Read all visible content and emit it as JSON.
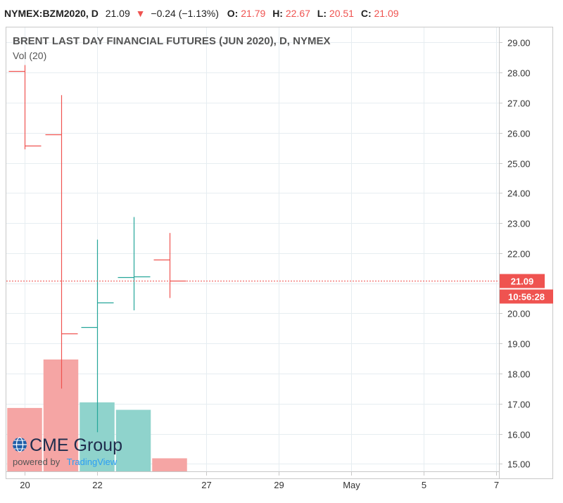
{
  "header": {
    "symbol": "NYMEX:BZM2020, D",
    "last": "21.09",
    "change_arrow": "▼",
    "change": "−0.24 (−1.13%)",
    "open_label": "O:",
    "open": "21.79",
    "high_label": "H:",
    "high": "22.67",
    "low_label": "L:",
    "low": "20.51",
    "close_label": "C:",
    "close": "21.09"
  },
  "colors": {
    "up": "#26a69a",
    "down": "#ef5350",
    "vol_up": "#8fd3cc",
    "vol_down": "#f5a5a4",
    "grid": "#e6edf1",
    "border": "#c8c8c8"
  },
  "price_tag": {
    "value": "21.09",
    "countdown": "10:56:28"
  },
  "logo": {
    "brand": "CME Group",
    "powered_by": "powered by",
    "tradingview": "TradingView"
  },
  "chart_data": {
    "type": "ohlc",
    "title": "BRENT LAST DAY FINANCIAL FUTURES (JUN 2020), D, NYMEX",
    "indicator": "Vol (20)",
    "yaxis": {
      "range": [
        14.75,
        29.5
      ],
      "ticks": [
        "15.00",
        "16.00",
        "17.00",
        "18.00",
        "19.00",
        "20.00",
        "21.00",
        "22.00",
        "23.00",
        "24.00",
        "25.00",
        "26.00",
        "27.00",
        "28.00",
        "29.00"
      ]
    },
    "xaxis": {
      "ticks": [
        {
          "label": "20",
          "slot": 0
        },
        {
          "label": "22",
          "slot": 2
        },
        {
          "label": "27",
          "slot": 5
        },
        {
          "label": "29",
          "slot": 7
        },
        {
          "label": "May",
          "slot": 9
        },
        {
          "label": "5",
          "slot": 11
        },
        {
          "label": "7",
          "slot": 13
        }
      ]
    },
    "bars": [
      {
        "date": "Apr 20",
        "slot": 0,
        "open": 28.05,
        "high": 28.25,
        "low": 25.45,
        "close": 25.57
      },
      {
        "date": "Apr 21",
        "slot": 1,
        "open": 25.95,
        "high": 27.25,
        "low": 17.5,
        "close": 19.33
      },
      {
        "date": "Apr 22",
        "slot": 2,
        "open": 19.55,
        "high": 22.45,
        "low": 16.05,
        "close": 20.37
      },
      {
        "date": "Apr 23",
        "slot": 3,
        "open": 21.2,
        "high": 23.2,
        "low": 20.1,
        "close": 21.22
      },
      {
        "date": "Apr 24",
        "slot": 4,
        "open": 21.79,
        "high": 22.67,
        "low": 20.51,
        "close": 21.09
      }
    ],
    "volume_fraction": [
      0.34,
      0.6,
      0.37,
      0.33,
      0.07
    ]
  }
}
